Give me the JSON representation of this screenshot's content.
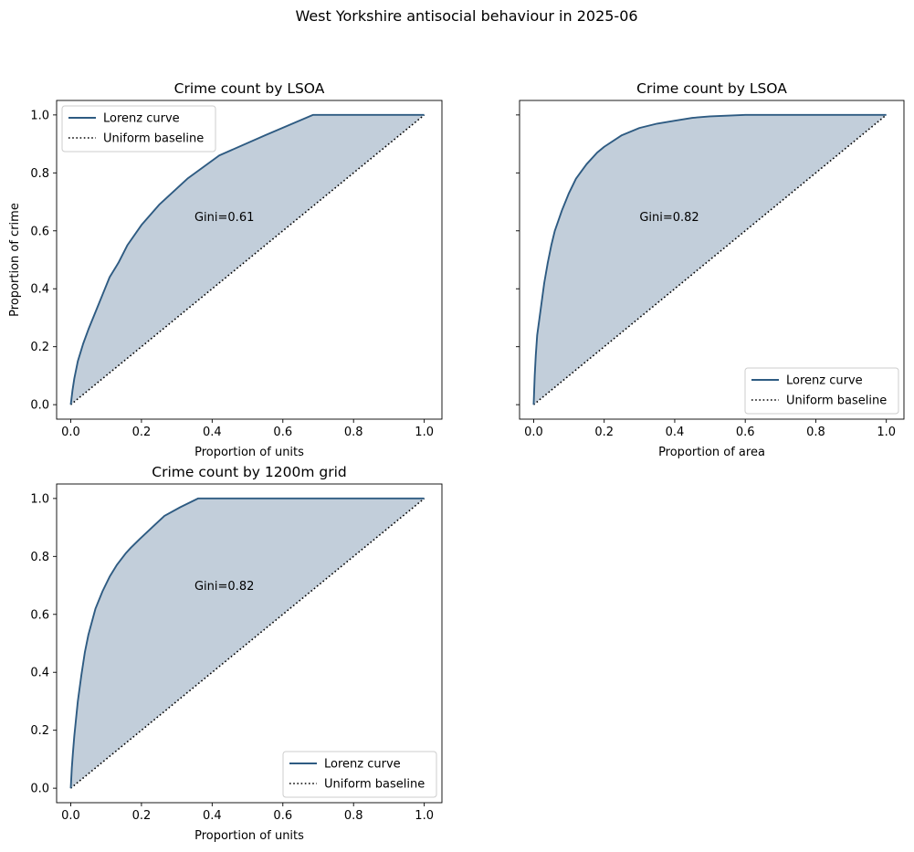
{
  "figure": {
    "suptitle": "West Yorkshire antisocial behaviour in 2025-06"
  },
  "colors": {
    "curve": "#2e5b82",
    "fill": "#c2ceda",
    "baseline": "#000000"
  },
  "chart_data": [
    {
      "type": "line",
      "title": "Crime count by LSOA",
      "xlabel": "Proportion of units",
      "ylabel": "Proportion of crime",
      "xlim": [
        -0.04,
        1.05
      ],
      "ylim": [
        -0.05,
        1.05
      ],
      "xticks": [
        "0.0",
        "0.2",
        "0.4",
        "0.6",
        "0.8",
        "1.0"
      ],
      "yticks": [
        "0.0",
        "0.2",
        "0.4",
        "0.6",
        "0.8",
        "1.0"
      ],
      "show_yticklabels": true,
      "grid": false,
      "legend_position": "top-left",
      "series": [
        {
          "name": "Lorenz curve",
          "style": "solid",
          "x": [
            0,
            0.005,
            0.01,
            0.02,
            0.035,
            0.05,
            0.07,
            0.09,
            0.11,
            0.135,
            0.16,
            0.2,
            0.25,
            0.33,
            0.42,
            0.55,
            0.685,
            0.8,
            1.0
          ],
          "y": [
            0,
            0.05,
            0.09,
            0.15,
            0.21,
            0.26,
            0.32,
            0.38,
            0.44,
            0.49,
            0.55,
            0.62,
            0.69,
            0.78,
            0.86,
            0.93,
            1.0,
            1.0,
            1.0
          ]
        },
        {
          "name": "Uniform baseline",
          "style": "dotted",
          "x": [
            0,
            1
          ],
          "y": [
            0,
            1
          ]
        }
      ],
      "annotation": {
        "text": "Gini=0.61",
        "x": 0.35,
        "y": 0.65
      }
    },
    {
      "type": "line",
      "title": "Crime count by LSOA",
      "xlabel": "Proportion of area",
      "ylabel": "",
      "xlim": [
        -0.04,
        1.05
      ],
      "ylim": [
        -0.05,
        1.05
      ],
      "xticks": [
        "0.0",
        "0.2",
        "0.4",
        "0.6",
        "0.8",
        "1.0"
      ],
      "yticks": [
        "0.0",
        "0.2",
        "0.4",
        "0.6",
        "0.8",
        "1.0"
      ],
      "show_yticklabels": false,
      "grid": false,
      "legend_position": "bottom-right",
      "series": [
        {
          "name": "Lorenz curve",
          "style": "solid",
          "x": [
            0,
            0.003,
            0.006,
            0.01,
            0.02,
            0.03,
            0.04,
            0.05,
            0.06,
            0.08,
            0.1,
            0.12,
            0.15,
            0.18,
            0.2,
            0.25,
            0.3,
            0.35,
            0.4,
            0.45,
            0.5,
            0.6,
            0.7,
            0.8,
            0.9,
            1.0
          ],
          "y": [
            0,
            0.1,
            0.17,
            0.24,
            0.33,
            0.42,
            0.49,
            0.55,
            0.6,
            0.67,
            0.73,
            0.78,
            0.83,
            0.87,
            0.89,
            0.93,
            0.955,
            0.97,
            0.98,
            0.99,
            0.995,
            1.0,
            1.0,
            1.0,
            1.0,
            1.0
          ]
        },
        {
          "name": "Uniform baseline",
          "style": "dotted",
          "x": [
            0,
            1
          ],
          "y": [
            0,
            1
          ]
        }
      ],
      "annotation": {
        "text": "Gini=0.82",
        "x": 0.3,
        "y": 0.65
      }
    },
    {
      "type": "line",
      "title": "Crime count by 1200m grid",
      "xlabel": "Proportion of units",
      "ylabel": "",
      "xlim": [
        -0.04,
        1.05
      ],
      "ylim": [
        -0.05,
        1.05
      ],
      "xticks": [
        "0.0",
        "0.2",
        "0.4",
        "0.6",
        "0.8",
        "1.0"
      ],
      "yticks": [
        "0.0",
        "0.2",
        "0.4",
        "0.6",
        "0.8",
        "1.0"
      ],
      "show_yticklabels": true,
      "grid": false,
      "legend_position": "bottom-right",
      "series": [
        {
          "name": "Lorenz curve",
          "style": "solid",
          "x": [
            0,
            0.003,
            0.006,
            0.01,
            0.015,
            0.02,
            0.03,
            0.04,
            0.05,
            0.07,
            0.09,
            0.11,
            0.13,
            0.155,
            0.17,
            0.195,
            0.23,
            0.265,
            0.31,
            0.36,
            0.5,
            0.7,
            1.0
          ],
          "y": [
            0,
            0.07,
            0.12,
            0.18,
            0.24,
            0.3,
            0.39,
            0.47,
            0.53,
            0.62,
            0.68,
            0.73,
            0.77,
            0.81,
            0.83,
            0.86,
            0.9,
            0.94,
            0.97,
            1.0,
            1.0,
            1.0,
            1.0
          ]
        },
        {
          "name": "Uniform baseline",
          "style": "dotted",
          "x": [
            0,
            1
          ],
          "y": [
            0,
            1
          ]
        }
      ],
      "annotation": {
        "text": "Gini=0.82",
        "x": 0.35,
        "y": 0.7
      }
    }
  ]
}
